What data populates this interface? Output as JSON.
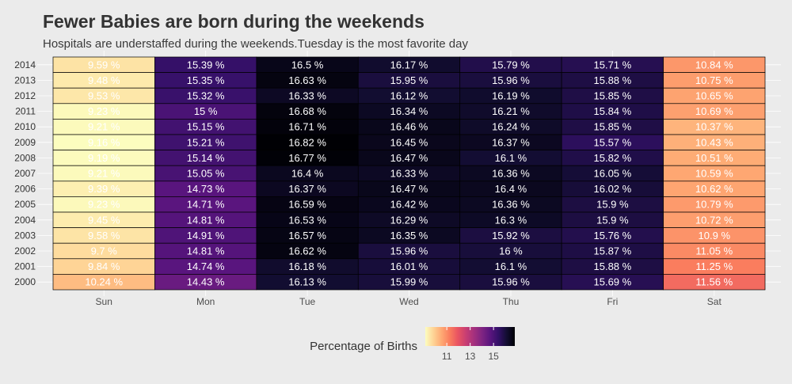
{
  "title": "Fewer Babies are born during the weekends",
  "subtitle": "Hospitals are understaffed during the weekends.Tuesday is the most favorite day",
  "chart_data": {
    "type": "heatmap",
    "x_categories": [
      "Sun",
      "Mon",
      "Tue",
      "Wed",
      "Thu",
      "Fri",
      "Sat"
    ],
    "y_categories": [
      "2014",
      "2013",
      "2012",
      "2011",
      "2010",
      "2009",
      "2008",
      "2007",
      "2006",
      "2005",
      "2004",
      "2003",
      "2002",
      "2001",
      "2000"
    ],
    "values": [
      [
        9.59,
        15.39,
        16.5,
        16.17,
        15.79,
        15.71,
        10.84
      ],
      [
        9.48,
        15.35,
        16.63,
        15.95,
        15.96,
        15.88,
        10.75
      ],
      [
        9.53,
        15.32,
        16.33,
        16.12,
        16.19,
        15.85,
        10.65
      ],
      [
        9.23,
        15,
        16.68,
        16.34,
        16.21,
        15.84,
        10.69
      ],
      [
        9.21,
        15.15,
        16.71,
        16.46,
        16.24,
        15.85,
        10.37
      ],
      [
        9.16,
        15.21,
        16.82,
        16.45,
        16.37,
        15.57,
        10.43
      ],
      [
        9.19,
        15.14,
        16.77,
        16.47,
        16.1,
        15.82,
        10.51
      ],
      [
        9.21,
        15.05,
        16.4,
        16.33,
        16.36,
        16.05,
        10.59
      ],
      [
        9.39,
        14.73,
        16.37,
        16.47,
        16.4,
        16.02,
        10.62
      ],
      [
        9.23,
        14.71,
        16.59,
        16.42,
        16.36,
        15.9,
        10.79
      ],
      [
        9.45,
        14.81,
        16.53,
        16.29,
        16.3,
        15.9,
        10.72
      ],
      [
        9.58,
        14.91,
        16.57,
        16.35,
        15.92,
        15.76,
        10.9
      ],
      [
        9.7,
        14.81,
        16.62,
        15.96,
        16,
        15.87,
        11.05
      ],
      [
        9.84,
        14.74,
        16.18,
        16.01,
        16.1,
        15.88,
        11.25
      ],
      [
        10.24,
        14.43,
        16.13,
        15.99,
        15.96,
        15.69,
        11.56
      ]
    ],
    "cell_labels": [
      [
        "9.59 %",
        "15.39 %",
        "16.5 %",
        "16.17 %",
        "15.79 %",
        "15.71 %",
        "10.84 %"
      ],
      [
        "9.48 %",
        "15.35 %",
        "16.63 %",
        "15.95 %",
        "15.96 %",
        "15.88 %",
        "10.75 %"
      ],
      [
        "9.53 %",
        "15.32 %",
        "16.33 %",
        "16.12 %",
        "16.19 %",
        "15.85 %",
        "10.65 %"
      ],
      [
        "9.23 %",
        "15 %",
        "16.68 %",
        "16.34 %",
        "16.21 %",
        "15.84 %",
        "10.69 %"
      ],
      [
        "9.21 %",
        "15.15 %",
        "16.71 %",
        "16.46 %",
        "16.24 %",
        "15.85 %",
        "10.37 %"
      ],
      [
        "9.16 %",
        "15.21 %",
        "16.82 %",
        "16.45 %",
        "16.37 %",
        "15.57 %",
        "10.43 %"
      ],
      [
        "9.19 %",
        "15.14 %",
        "16.77 %",
        "16.47 %",
        "16.1 %",
        "15.82 %",
        "10.51 %"
      ],
      [
        "9.21 %",
        "15.05 %",
        "16.4 %",
        "16.33 %",
        "16.36 %",
        "16.05 %",
        "10.59 %"
      ],
      [
        "9.39 %",
        "14.73 %",
        "16.37 %",
        "16.47 %",
        "16.4 %",
        "16.02 %",
        "10.62 %"
      ],
      [
        "9.23 %",
        "14.71 %",
        "16.59 %",
        "16.42 %",
        "16.36 %",
        "15.9 %",
        "10.79 %"
      ],
      [
        "9.45 %",
        "14.81 %",
        "16.53 %",
        "16.29 %",
        "16.3 %",
        "15.9 %",
        "10.72 %"
      ],
      [
        "9.58 %",
        "14.91 %",
        "16.57 %",
        "16.35 %",
        "15.92 %",
        "15.76 %",
        "10.9 %"
      ],
      [
        "9.7 %",
        "14.81 %",
        "16.62 %",
        "15.96 %",
        "16 %",
        "15.87 %",
        "11.05 %"
      ],
      [
        "9.84 %",
        "14.74 %",
        "16.18 %",
        "16.01 %",
        "16.1 %",
        "15.88 %",
        "11.25 %"
      ],
      [
        "10.24 %",
        "14.43 %",
        "16.13 %",
        "15.99 %",
        "15.96 %",
        "15.69 %",
        "11.56 %"
      ]
    ],
    "color_scale": {
      "name": "magma (reversed)",
      "range": [
        9.16,
        16.82
      ],
      "stops": [
        "#fcfdbf",
        "#fed395",
        "#fea973",
        "#fa7d5e",
        "#e95462",
        "#c83e73",
        "#a3307e",
        "#7e2482",
        "#59157e",
        "#331067",
        "#120d31",
        "#000004"
      ]
    },
    "cell_label_color": "#ffffff",
    "legend": {
      "title": "Percentage of Births",
      "ticks": [
        11,
        13,
        15
      ],
      "position": "bottom"
    },
    "grid": true
  }
}
